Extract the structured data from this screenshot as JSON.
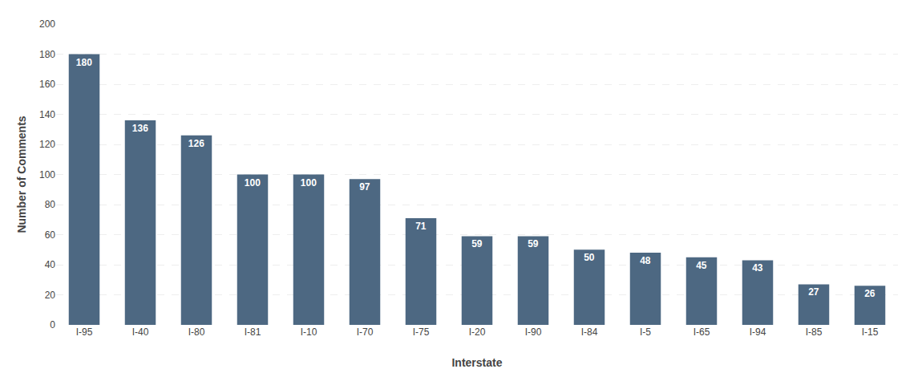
{
  "chart_data": {
    "type": "bar",
    "categories": [
      "I-95",
      "I-40",
      "I-80",
      "I-81",
      "I-10",
      "I-70",
      "I-75",
      "I-20",
      "I-90",
      "I-84",
      "I-5",
      "I-65",
      "I-94",
      "I-85",
      "I-15"
    ],
    "values": [
      180,
      136,
      126,
      100,
      100,
      97,
      71,
      59,
      59,
      50,
      48,
      45,
      43,
      27,
      26
    ],
    "color": "#4d6882",
    "xlabel": "Interstate",
    "ylabel": "Number of Comments",
    "ylim": [
      0,
      200
    ],
    "yticks": [
      0,
      20,
      40,
      60,
      80,
      100,
      120,
      140,
      160,
      180,
      200
    ],
    "grid": true,
    "data_labels": true
  }
}
